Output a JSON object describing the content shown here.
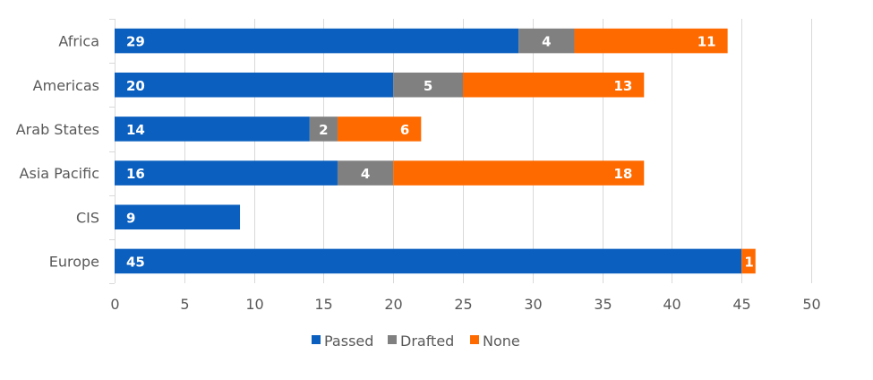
{
  "chart_data": {
    "type": "bar",
    "orientation": "horizontal",
    "stacked": true,
    "categories": [
      "Africa",
      "Americas",
      "Arab States",
      "Asia Pacific",
      "CIS",
      "Europe"
    ],
    "series": [
      {
        "name": "Passed",
        "color": "#0a5fbf",
        "values": [
          29,
          20,
          14,
          16,
          9,
          45
        ]
      },
      {
        "name": "Drafted",
        "color": "#808080",
        "values": [
          4,
          5,
          2,
          4,
          0,
          0
        ]
      },
      {
        "name": "None",
        "color": "#ff6a00",
        "values": [
          11,
          13,
          6,
          18,
          0,
          1
        ]
      }
    ],
    "xlim": [
      0,
      50
    ],
    "xticks": [
      0,
      5,
      10,
      15,
      20,
      25,
      30,
      35,
      40,
      45,
      50
    ],
    "grid": "vertical",
    "legend": "bottom",
    "title": "",
    "xlabel": "",
    "ylabel": ""
  }
}
